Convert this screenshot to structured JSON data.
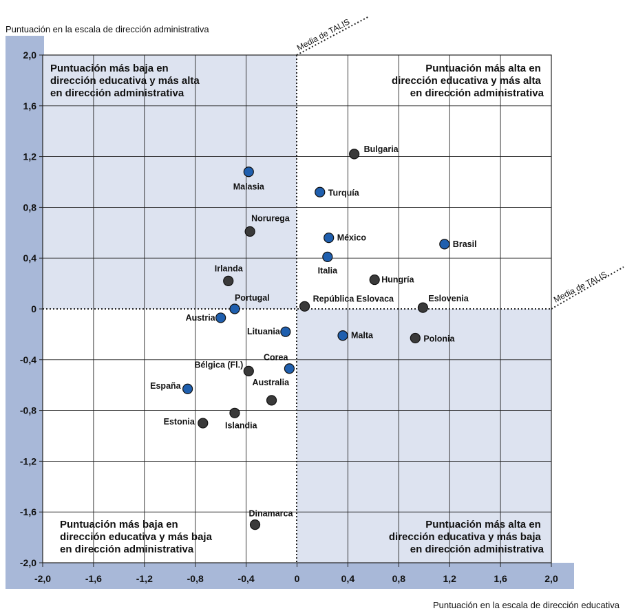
{
  "chart_data": {
    "type": "scatter",
    "ylabel": "Puntuación en la escala de dirección administrativa",
    "xlabel": "Puntuación en la escala de dirección educativa",
    "xlim": [
      -2.0,
      2.0
    ],
    "ylim": [
      -2.0,
      2.0
    ],
    "x_ticks": [
      "-2,0",
      "-1,6",
      "-1,2",
      "-0,8",
      "-0,4",
      "0",
      "0,4",
      "0,8",
      "1,2",
      "1,6",
      "2,0"
    ],
    "y_ticks": [
      "2,0",
      "1,6",
      "1,2",
      "0,8",
      "0,4",
      "0",
      "-0,4",
      "-0,8",
      "-1,2",
      "-1,6",
      "-2,0"
    ],
    "grid": true,
    "mean_line_label": "Media de TALIS",
    "quadrant_labels": {
      "top_left": [
        "Puntuación más baja en",
        "dirección educativa y más alta",
        "en dirección administrativa"
      ],
      "top_right": [
        "Puntuación más alta en",
        "dirección educativa y más alta",
        "en dirección administrativa"
      ],
      "bottom_left": [
        "Puntuación más baja en",
        "dirección educativa y más baja",
        "en dirección administrativa"
      ],
      "bottom_right": [
        "Puntuación más alta en",
        "dirección educativa y más baja",
        "en dirección administrativa"
      ]
    },
    "colors": {
      "dark": "#3a3a3a",
      "blue": "#1f5fae",
      "band": "#a8b8d8",
      "shade": "#dde3f0"
    },
    "points": [
      {
        "label": "Bulgaria",
        "x": 0.45,
        "y": 1.22,
        "color": "dark"
      },
      {
        "label": "Malasia",
        "x": -0.38,
        "y": 1.08,
        "color": "blue"
      },
      {
        "label": "Turquía",
        "x": 0.18,
        "y": 0.92,
        "color": "blue"
      },
      {
        "label": "Norurega",
        "x": -0.37,
        "y": 0.61,
        "color": "dark"
      },
      {
        "label": "México",
        "x": 0.25,
        "y": 0.56,
        "color": "blue"
      },
      {
        "label": "Brasil",
        "x": 1.16,
        "y": 0.51,
        "color": "blue"
      },
      {
        "label": "Italia",
        "x": 0.24,
        "y": 0.41,
        "color": "blue"
      },
      {
        "label": "Hungría",
        "x": 0.61,
        "y": 0.23,
        "color": "dark"
      },
      {
        "label": "Irlanda",
        "x": -0.54,
        "y": 0.22,
        "color": "dark"
      },
      {
        "label": "Portugal",
        "x": -0.49,
        "y": 0.0,
        "color": "blue"
      },
      {
        "label": "República Eslovaca",
        "x": 0.06,
        "y": 0.02,
        "color": "dark"
      },
      {
        "label": "Eslovenia",
        "x": 0.99,
        "y": 0.01,
        "color": "dark"
      },
      {
        "label": "Austria",
        "x": -0.6,
        "y": -0.07,
        "color": "blue"
      },
      {
        "label": "Lituania",
        "x": -0.09,
        "y": -0.18,
        "color": "blue"
      },
      {
        "label": "Malta",
        "x": 0.36,
        "y": -0.21,
        "color": "blue"
      },
      {
        "label": "Polonia",
        "x": 0.93,
        "y": -0.23,
        "color": "dark"
      },
      {
        "label": "Corea",
        "x": -0.06,
        "y": -0.47,
        "color": "blue"
      },
      {
        "label": "Bélgica (Fl.)",
        "x": -0.38,
        "y": -0.49,
        "color": "dark"
      },
      {
        "label": "España",
        "x": -0.86,
        "y": -0.63,
        "color": "blue"
      },
      {
        "label": "Australia",
        "x": -0.2,
        "y": -0.72,
        "color": "dark"
      },
      {
        "label": "Islandia",
        "x": -0.49,
        "y": -0.82,
        "color": "dark"
      },
      {
        "label": "Estonia",
        "x": -0.74,
        "y": -0.9,
        "color": "dark"
      },
      {
        "label": "Dinamarca",
        "x": -0.33,
        "y": -1.7,
        "color": "dark"
      }
    ]
  }
}
